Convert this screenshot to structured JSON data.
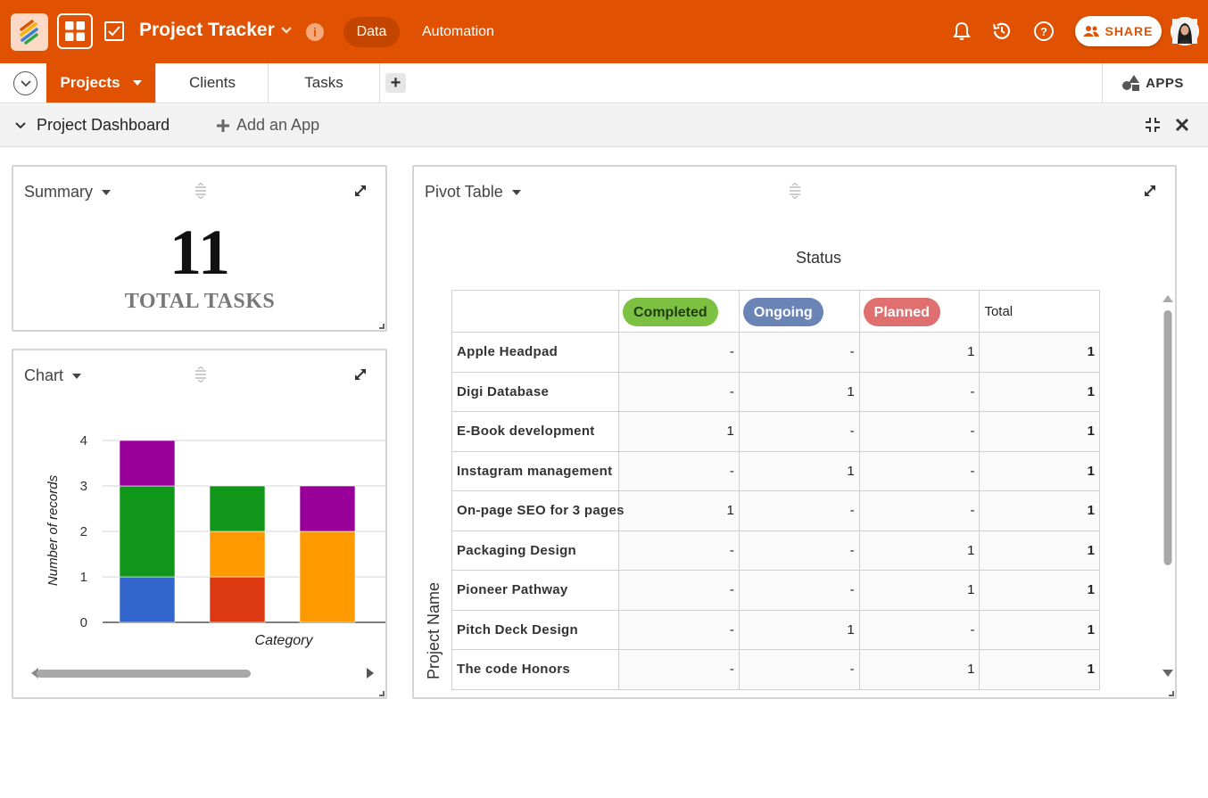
{
  "app": {
    "title": "Project Tracker",
    "nav": {
      "data": "Data",
      "automation": "Automation"
    },
    "share_label": "SHARE"
  },
  "tabs": {
    "items": [
      {
        "label": "Projects",
        "active": true
      },
      {
        "label": "Clients",
        "active": false
      },
      {
        "label": "Tasks",
        "active": false
      }
    ],
    "apps_label": "APPS"
  },
  "dashboard": {
    "title": "Project Dashboard",
    "add_app": "Add an App"
  },
  "summary": {
    "title": "Summary",
    "value": "11",
    "label": "TOTAL TASKS"
  },
  "chart_widget": {
    "title": "Chart"
  },
  "chart_data": {
    "type": "bar",
    "stacked": true,
    "xlabel": "Category",
    "ylabel": "Number of records",
    "ylim": [
      0,
      4
    ],
    "yticks": [
      "0",
      "1",
      "2",
      "3",
      "4"
    ],
    "categories": [
      "",
      "",
      ""
    ],
    "series": [
      {
        "color": "#3366cc",
        "values": [
          1,
          0,
          0
        ]
      },
      {
        "color": "#dc3912",
        "values": [
          0,
          1,
          0
        ]
      },
      {
        "color": "#ff9900",
        "values": [
          0,
          1,
          2
        ]
      },
      {
        "color": "#109618",
        "values": [
          2,
          1,
          0
        ]
      },
      {
        "color": "#990099",
        "values": [
          1,
          0,
          1
        ]
      }
    ],
    "grid": true
  },
  "pivot": {
    "title": "Pivot Table",
    "column_field": "Status",
    "row_field": "Project Name",
    "columns": [
      {
        "label": "Completed",
        "color": "#7cc142",
        "text_color": "#1f3d0f"
      },
      {
        "label": "Ongoing",
        "color": "#6a84b5",
        "text_color": "#ffffff"
      },
      {
        "label": "Planned",
        "color": "#e07070",
        "text_color": "#ffffff"
      }
    ],
    "total_label": "Total",
    "rows": [
      {
        "name": "Apple Headpad",
        "values": [
          "-",
          "-",
          "1"
        ],
        "total": "1"
      },
      {
        "name": "Digi Database",
        "values": [
          "-",
          "1",
          "-"
        ],
        "total": "1"
      },
      {
        "name": "E-Book development",
        "values": [
          "1",
          "-",
          "-"
        ],
        "total": "1"
      },
      {
        "name": "Instagram management",
        "values": [
          "-",
          "1",
          "-"
        ],
        "total": "1"
      },
      {
        "name": "On-page SEO for 3 pages",
        "values": [
          "1",
          "-",
          "-"
        ],
        "total": "1"
      },
      {
        "name": "Packaging Design",
        "values": [
          "-",
          "-",
          "1"
        ],
        "total": "1"
      },
      {
        "name": "Pioneer Pathway",
        "values": [
          "-",
          "-",
          "1"
        ],
        "total": "1"
      },
      {
        "name": "Pitch Deck Design",
        "values": [
          "-",
          "1",
          "-"
        ],
        "total": "1"
      },
      {
        "name": "The code Honors",
        "values": [
          "-",
          "-",
          "1"
        ],
        "total": "1"
      }
    ]
  },
  "colors": {
    "brand": "#e05201",
    "brand_dark": "#c44500"
  }
}
